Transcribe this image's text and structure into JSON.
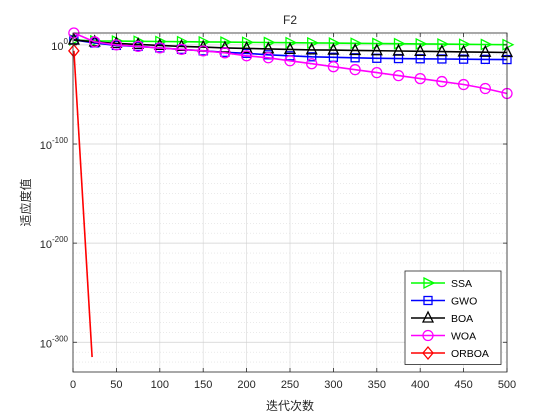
{
  "chart_data": {
    "type": "line",
    "title": "F2",
    "xlabel": "迭代次数",
    "ylabel": "适应度值",
    "xlim": [
      0,
      500
    ],
    "x_ticks": [
      0,
      50,
      100,
      150,
      200,
      250,
      300,
      350,
      400,
      450,
      500
    ],
    "y_scale": "log",
    "y_exponent_limits": [
      -330,
      12
    ],
    "y_ticks": [
      {
        "base": "10",
        "exp": "0",
        "value_exp": 0
      },
      {
        "base": "10",
        "exp": "-100",
        "value_exp": -100
      },
      {
        "base": "10",
        "exp": "-200",
        "value_exp": -200
      },
      {
        "base": "10",
        "exp": "-300",
        "value_exp": -300
      }
    ],
    "grid": true,
    "legend_position": "bottom-right",
    "series": [
      {
        "name": "SSA",
        "color": "#00ff00",
        "marker": "triangle-right",
        "x": [
          1,
          25,
          50,
          75,
          100,
          125,
          150,
          175,
          200,
          225,
          250,
          275,
          300,
          325,
          350,
          375,
          400,
          425,
          450,
          475,
          500
        ],
        "y_log10": [
          5,
          4,
          3.8,
          3.6,
          3.4,
          3.2,
          3.0,
          2.8,
          2.6,
          2.4,
          2.2,
          2.0,
          1.8,
          1.6,
          1.4,
          1.2,
          1.0,
          0.8,
          0.6,
          0.4,
          0.2
        ]
      },
      {
        "name": "GWO",
        "color": "#0000ff",
        "marker": "square",
        "x": [
          1,
          25,
          50,
          75,
          100,
          125,
          150,
          175,
          200,
          225,
          250,
          275,
          300,
          325,
          350,
          375,
          400,
          425,
          450,
          475,
          500
        ],
        "y_log10": [
          5,
          2,
          -0.5,
          -1.5,
          -3,
          -4.5,
          -6,
          -7.5,
          -8.5,
          -10,
          -11,
          -12,
          -12.5,
          -13,
          -13.5,
          -13.8,
          -14,
          -14.2,
          -14.4,
          -14.6,
          -14.8
        ]
      },
      {
        "name": "BOA",
        "color": "#000000",
        "marker": "triangle-up",
        "x": [
          1,
          25,
          50,
          75,
          100,
          125,
          150,
          175,
          200,
          225,
          250,
          275,
          300,
          325,
          350,
          375,
          400,
          425,
          450,
          475,
          500
        ],
        "y_log10": [
          5,
          3,
          1.5,
          0.5,
          -0.5,
          -1.5,
          -2.2,
          -3,
          -3.5,
          -4,
          -4.5,
          -5,
          -5.3,
          -5.6,
          -5.9,
          -6.2,
          -6.5,
          -6.8,
          -7.1,
          -7.4,
          -7.7
        ]
      },
      {
        "name": "WOA",
        "color": "#ff00ff",
        "marker": "circle",
        "x": [
          1,
          25,
          50,
          75,
          100,
          125,
          150,
          175,
          200,
          225,
          250,
          275,
          300,
          325,
          350,
          375,
          400,
          425,
          450,
          475,
          500
        ],
        "y_log10": [
          12,
          3,
          0,
          -1.5,
          -3,
          -4.5,
          -6,
          -8,
          -11,
          -13,
          -16,
          -19,
          -22,
          -25,
          -28,
          -31,
          -34,
          -37,
          -40,
          -44,
          -49
        ]
      },
      {
        "name": "ORBOA",
        "color": "#ff0000",
        "marker": "diamond",
        "x": [
          1,
          22
        ],
        "y_log10": [
          -6,
          -315
        ]
      }
    ]
  }
}
